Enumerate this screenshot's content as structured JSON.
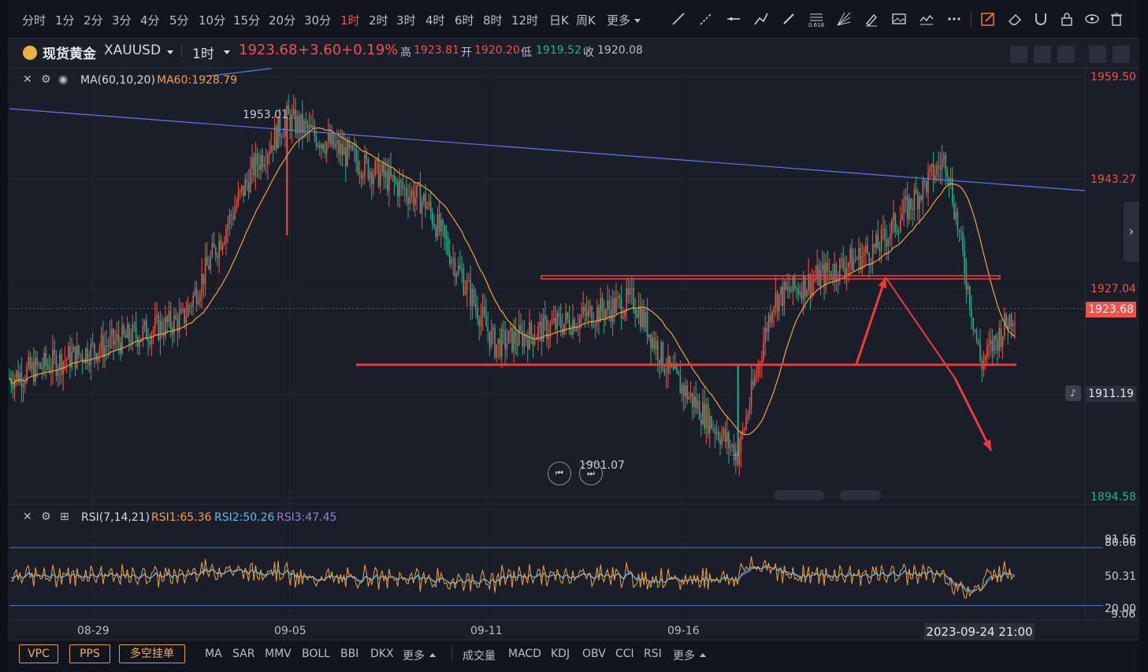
{
  "toolbar": {
    "periods": [
      "分时",
      "1分",
      "2分",
      "3分",
      "4分",
      "5分",
      "10分",
      "15分",
      "20分",
      "30分",
      "1时",
      "2时",
      "3时",
      "4时",
      "6时",
      "8时",
      "12时",
      "日K",
      "周K",
      "更多"
    ],
    "active_period": "1时",
    "tools": [
      "trend-line-icon",
      "ray-icon",
      "horizontal-line-icon",
      "polyline-icon",
      "pen-icon",
      "fibonacci-icon",
      "gann-fan-icon",
      "highlighter-icon",
      "image-icon",
      "pattern-icon",
      "more-dots-icon",
      "edit-icon",
      "eraser-icon",
      "magnet-icon",
      "lock-icon",
      "eye-icon",
      "trash-icon"
    ],
    "fib_label": "0.618"
  },
  "symbol": {
    "name": "现货黄金",
    "code": "XAUUSD",
    "timeframe": "1时",
    "last": "1923.68",
    "change": "+3.60",
    "change_pct": "+0.19%",
    "high_label": "高",
    "high": "1923.81",
    "open_label": "开",
    "open": "1920.20",
    "low_label": "低",
    "low": "1919.52",
    "close_label": "收",
    "close": "1920.08"
  },
  "ma_legend": {
    "name": "MA(60,10,20)",
    "value": "MA60:1928.79"
  },
  "rsi_legend": {
    "name": "RSI(7,14,21)",
    "rsi1": "RSI1:65.36",
    "rsi2": "RSI2:50.26",
    "rsi3": "RSI3:47.45"
  },
  "price_axis": [
    "1959.50",
    "1943.27",
    "1927.04",
    "1911.19",
    "1894.58"
  ],
  "current_price_tag": "1923.68",
  "rsi_axis": [
    "91.56",
    "80.00",
    "50.31",
    "20.00",
    "9.06"
  ],
  "date_axis": [
    "08-29",
    "09-05",
    "09-11",
    "09-16"
  ],
  "crosshair_time": "2023-09-24 21:00",
  "annotations": {
    "high_mark": "1953.01",
    "low_mark": "1901.07"
  },
  "colors": {
    "up": "#f0524a",
    "down": "#1fb28a",
    "ma": "#f2a33c",
    "trendline": "#5a7cf0",
    "rsi1": "#f2a33c",
    "rsi2": "#4fc3e8",
    "rsi3": "#9b7bd9"
  },
  "bottom": {
    "left_buttons": [
      "VPC",
      "PPS",
      "多空挂单"
    ],
    "main_indicators": [
      "MA",
      "SAR",
      "MMV",
      "BOLL",
      "BBI",
      "DKX",
      "更多"
    ],
    "sub_indicators": [
      "成交量",
      "MACD",
      "KDJ",
      "OBV",
      "CCI",
      "RSI",
      "更多"
    ]
  },
  "chart_data": {
    "type": "candlestick",
    "symbol": "XAUUSD",
    "interval": "1h",
    "x_range": [
      "2023-08-24",
      "2023-09-24"
    ],
    "y_range": [
      1894.58,
      1959.5
    ],
    "ma60_last": 1928.79,
    "key_points": [
      {
        "date": "2023-08-24",
        "price": 1913
      },
      {
        "date": "2023-08-29",
        "price": 1922
      },
      {
        "date": "2023-08-31",
        "price": 1945
      },
      {
        "date": "2023-09-01",
        "price": 1953.01
      },
      {
        "date": "2023-09-05",
        "price": 1940
      },
      {
        "date": "2023-09-07",
        "price": 1918
      },
      {
        "date": "2023-09-11",
        "price": 1925
      },
      {
        "date": "2023-09-12",
        "price": 1914
      },
      {
        "date": "2023-09-14",
        "price": 1901.07
      },
      {
        "date": "2023-09-15",
        "price": 1925
      },
      {
        "date": "2023-09-18",
        "price": 1933
      },
      {
        "date": "2023-09-20",
        "price": 1947
      },
      {
        "date": "2023-09-21",
        "price": 1915
      },
      {
        "date": "2023-09-22",
        "price": 1923.68
      }
    ],
    "support_level": 1915,
    "resistance_level": 1928.5,
    "rsi_levels": [
      20,
      80
    ]
  }
}
